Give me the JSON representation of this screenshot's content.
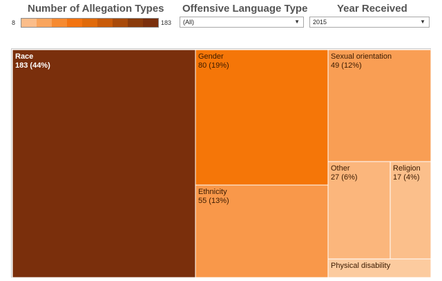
{
  "filters": {
    "legend_title": "Number of Allegation Types",
    "legend_min": "8",
    "legend_max": "183",
    "language_title": "Offensive Language Type",
    "language_value": "(All)",
    "year_title": "Year Received",
    "year_value": "2015",
    "dropdown_icon": "caret-down-icon"
  },
  "colors": {
    "legend_gradient": [
      "#fbbd8a",
      "#f9a45c",
      "#f68a30",
      "#f27310",
      "#e06a0a",
      "#c85a08",
      "#a84a09",
      "#8a3b0b",
      "#7a2f0c"
    ]
  },
  "chart_data": {
    "type": "treemap",
    "title": "",
    "color_measure": "Number of Allegation Types",
    "color_range": [
      8,
      183
    ],
    "items": [
      {
        "label": "Race",
        "value": 183,
        "value_label": "183 (44%)",
        "color": "#7a2f0c",
        "text_color": "#ffffff"
      },
      {
        "label": "Gender",
        "value": 80,
        "value_label": "80 (19%)",
        "color": "#f57608",
        "text_color": "#3a1a00"
      },
      {
        "label": "Ethnicity",
        "value": 55,
        "value_label": "55 (13%)",
        "color": "#f9984a",
        "text_color": "#3a1a00"
      },
      {
        "label": "Sexual orientation",
        "value": 49,
        "value_label": "49 (12%)",
        "color": "#f99e54",
        "text_color": "#3a1a00"
      },
      {
        "label": "Other",
        "value": 27,
        "value_label": "27 (6%)",
        "color": "#fbb67c",
        "text_color": "#3a1a00"
      },
      {
        "label": "Religion",
        "value": 17,
        "value_label": "17 (4%)",
        "color": "#fbbf8b",
        "text_color": "#3a1a00"
      },
      {
        "label": "Physical disability",
        "value": 8,
        "value_label": "",
        "color": "#fccb9f",
        "text_color": "#3a1a00"
      }
    ]
  }
}
